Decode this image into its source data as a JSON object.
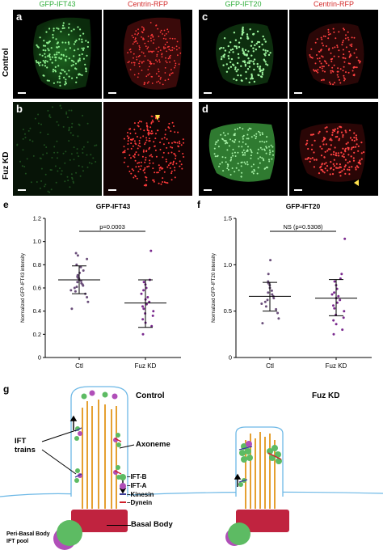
{
  "image_panels": {
    "row_labels": [
      "Control",
      "Fuz KD"
    ],
    "column_headers": [
      "GFP-IFT43",
      "Centrin-RFP",
      "GFP-IFT20",
      "Centrin-RFP"
    ],
    "panel_letters": [
      "a",
      "b",
      "c",
      "d"
    ]
  },
  "chart_data": [
    {
      "type": "scatter",
      "panel": "e",
      "title": "GFP-IFT43",
      "xlabel": "",
      "ylabel": "Normalized GFP-IFT43 intensity",
      "categories": [
        "Ctl",
        "Fuz KD"
      ],
      "ylim": [
        0,
        1.2
      ],
      "yticks": [
        "0",
        "0.2",
        "0.4",
        "0.6",
        "0.8",
        "1.0",
        "1.2"
      ],
      "significance": "p=0.0003",
      "series": [
        {
          "mean": 0.67,
          "sd_low": 0.55,
          "sd_high": 0.79,
          "values": [
            0.42,
            0.48,
            0.52,
            0.55,
            0.57,
            0.58,
            0.6,
            0.61,
            0.62,
            0.63,
            0.64,
            0.65,
            0.66,
            0.67,
            0.68,
            0.69,
            0.7,
            0.71,
            0.73,
            0.75,
            0.78,
            0.8,
            0.85,
            0.88,
            0.9
          ]
        },
        {
          "mean": 0.47,
          "sd_low": 0.26,
          "sd_high": 0.67,
          "values": [
            0.2,
            0.27,
            0.3,
            0.33,
            0.36,
            0.38,
            0.4,
            0.42,
            0.44,
            0.46,
            0.48,
            0.5,
            0.52,
            0.55,
            0.58,
            0.6,
            0.63,
            0.65,
            0.67,
            0.92
          ]
        }
      ]
    },
    {
      "type": "scatter",
      "panel": "f",
      "title": "GFP-IFT20",
      "xlabel": "",
      "ylabel": "Normalized GFP-IFT20 intensity",
      "categories": [
        "Ctl",
        "Fuz KD"
      ],
      "ylim": [
        0,
        1.5
      ],
      "yticks": [
        "0",
        "0.5",
        "1.0",
        "1.5"
      ],
      "significance": "NS (p=0.5308)",
      "series": [
        {
          "mean": 0.66,
          "sd_low": 0.5,
          "sd_high": 0.81,
          "values": [
            0.37,
            0.42,
            0.48,
            0.52,
            0.55,
            0.58,
            0.6,
            0.62,
            0.64,
            0.66,
            0.68,
            0.7,
            0.72,
            0.75,
            0.78,
            0.8,
            0.82,
            0.9,
            1.05
          ]
        },
        {
          "mean": 0.64,
          "sd_low": 0.45,
          "sd_high": 0.84,
          "values": [
            0.25,
            0.3,
            0.36,
            0.4,
            0.43,
            0.46,
            0.5,
            0.53,
            0.56,
            0.59,
            0.62,
            0.64,
            0.66,
            0.68,
            0.7,
            0.74,
            0.78,
            0.82,
            0.85,
            0.9,
            1.28
          ]
        }
      ]
    }
  ],
  "diagram": {
    "panel": "g",
    "control_title": "Control",
    "fuz_title": "Fuz KD",
    "labels": {
      "ift_trains": "IFT\ntrains",
      "axoneme": "Axoneme",
      "basal_body": "Basal Body",
      "pool": "Peri-Basal Body\nIFT pool"
    },
    "legend": [
      {
        "label": "–IFT-B",
        "color": "#5dbb63"
      },
      {
        "label": "–IFT-A",
        "color": "#b04fb8"
      },
      {
        "label": "–Kinesin",
        "color": "#3b3b9a"
      },
      {
        "label": "–Dynein",
        "color": "#d0202a"
      }
    ],
    "colors": {
      "cilium": "#6db8e6",
      "axoneme": "#e5a031",
      "basal_body": "#c0233f"
    }
  }
}
